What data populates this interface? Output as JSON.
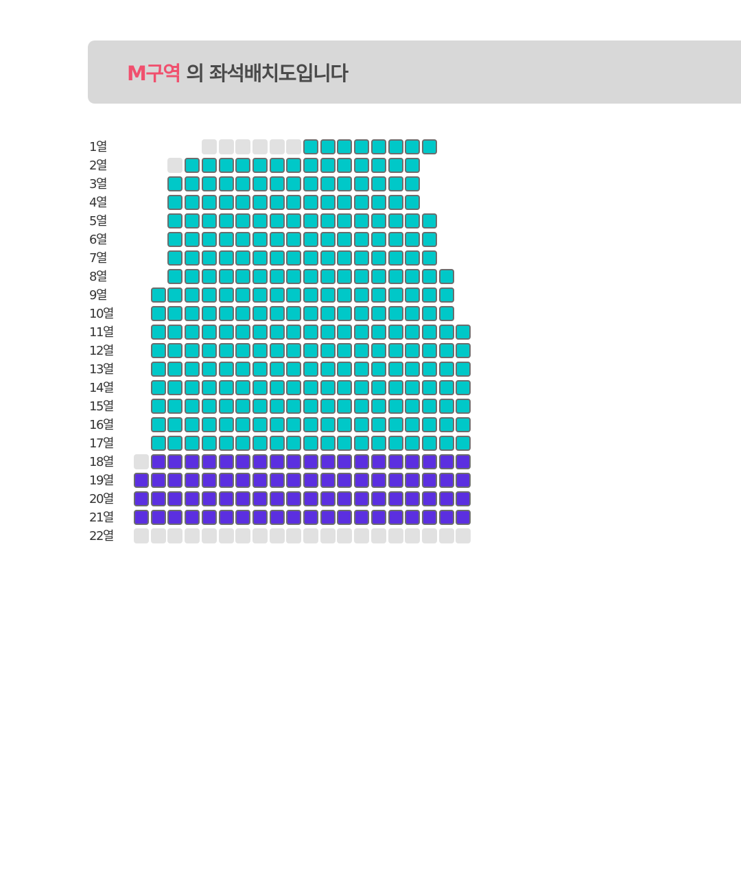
{
  "header": {
    "zone_name": "M구역",
    "title_suffix": " 의 좌석배치도입니다",
    "accent_color": "#f0506e"
  },
  "seat_map": {
    "colors": {
      "floor_a": "#00c8c8",
      "floor_b": "#5b2fe0",
      "unavailable": "#e1e1e1"
    },
    "rows": [
      {
        "label": "1열",
        "seats": "....GGGGGGTTTTTTTT...."
      },
      {
        "label": "2열",
        "seats": "..GTTTTTTTTTTTTTT....."
      },
      {
        "label": "3열",
        "seats": "..TTTTTTTTTTTTTTT....."
      },
      {
        "label": "4열",
        "seats": "..TTTTTTTTTTTTTTT....."
      },
      {
        "label": "5열",
        "seats": "..TTTTTTTTTTTTTTTT...."
      },
      {
        "label": "6열",
        "seats": "..TTTTTTTTTTTTTTTT...."
      },
      {
        "label": "7열",
        "seats": "..TTTTTTTTTTTTTTTT...."
      },
      {
        "label": "8열",
        "seats": "..TTTTTTTTTTTTTTTTT..."
      },
      {
        "label": "9열",
        "seats": ".TTTTTTTTTTTTTTTTTT..."
      },
      {
        "label": "10열",
        "seats": ".TTTTTTTTTTTTTTTTTT..."
      },
      {
        "label": "11열",
        "seats": ".TTTTTTTTTTTTTTTTTTT.."
      },
      {
        "label": "12열",
        "seats": ".TTTTTTTTTTTTTTTTTTT.."
      },
      {
        "label": "13열",
        "seats": ".TTTTTTTTTTTTTTTTTTT.."
      },
      {
        "label": "14열",
        "seats": ".TTTTTTTTTTTTTTTTTTT.."
      },
      {
        "label": "15열",
        "seats": ".TTTTTTTTTTTTTTTTTTT.."
      },
      {
        "label": "16열",
        "seats": ".TTTTTTTTTTTTTTTTTTT.."
      },
      {
        "label": "17열",
        "seats": ".TTTTTTTTTTTTTTTTTTT.."
      },
      {
        "label": "18열",
        "seats": "GPPPPPPPPPPPPPPPPPPP.."
      },
      {
        "label": "19열",
        "seats": "PPPPPPPPPPPPPPPPPPPP.."
      },
      {
        "label": "20열",
        "seats": "PPPPPPPPPPPPPPPPPPPP.."
      },
      {
        "label": "21열",
        "seats": "PPPPPPPPPPPPPPPPPPPP.."
      },
      {
        "label": "22열",
        "seats": "GGGGGGGGGGGGGGGGGGGG.."
      }
    ]
  }
}
